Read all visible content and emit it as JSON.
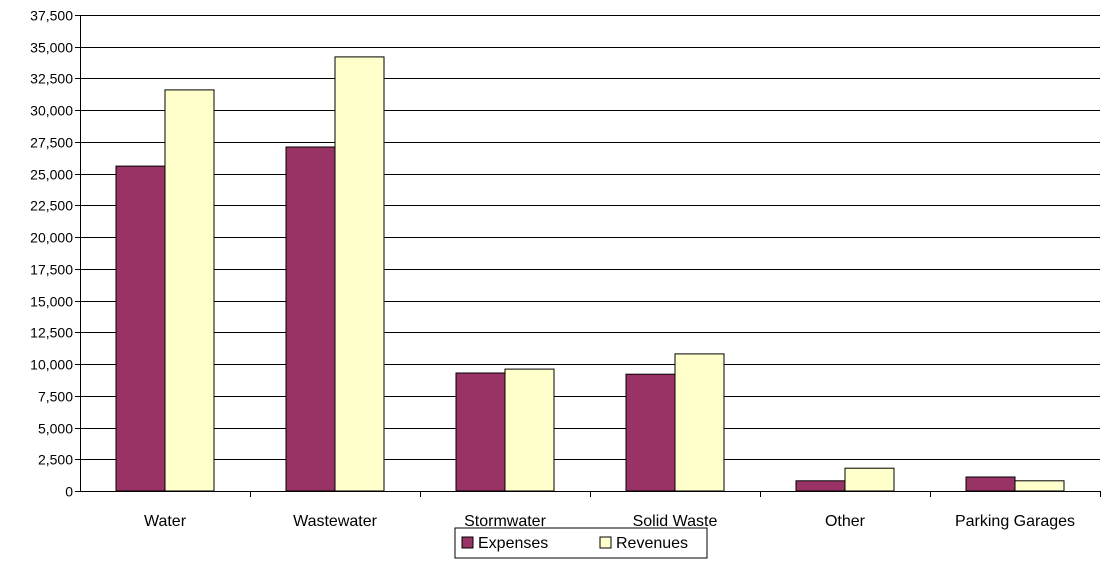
{
  "chart_data": {
    "type": "bar",
    "categories": [
      "Water",
      "Wastewater",
      "Stormwater",
      "Solid Waste",
      "Other",
      "Parking Garages"
    ],
    "series": [
      {
        "name": "Expenses",
        "values": [
          25600,
          27100,
          9300,
          9200,
          800,
          1100
        ],
        "color": "#993366"
      },
      {
        "name": "Revenues",
        "values": [
          31600,
          34200,
          9600,
          10800,
          1800,
          800
        ],
        "color": "#FFFFCC"
      }
    ],
    "y_ticks": [
      "0",
      "2,500",
      "5,000",
      "7,500",
      "10,000",
      "12,500",
      "15,000",
      "17,500",
      "20,000",
      "22,500",
      "25,000",
      "27,500",
      "30,000",
      "32,500",
      "35,000",
      "37,500"
    ],
    "ylim": [
      0,
      37500
    ],
    "y_step": 2500,
    "title": "",
    "xlabel": "",
    "ylabel": "",
    "grid": true,
    "legend_position": "bottom-center"
  }
}
